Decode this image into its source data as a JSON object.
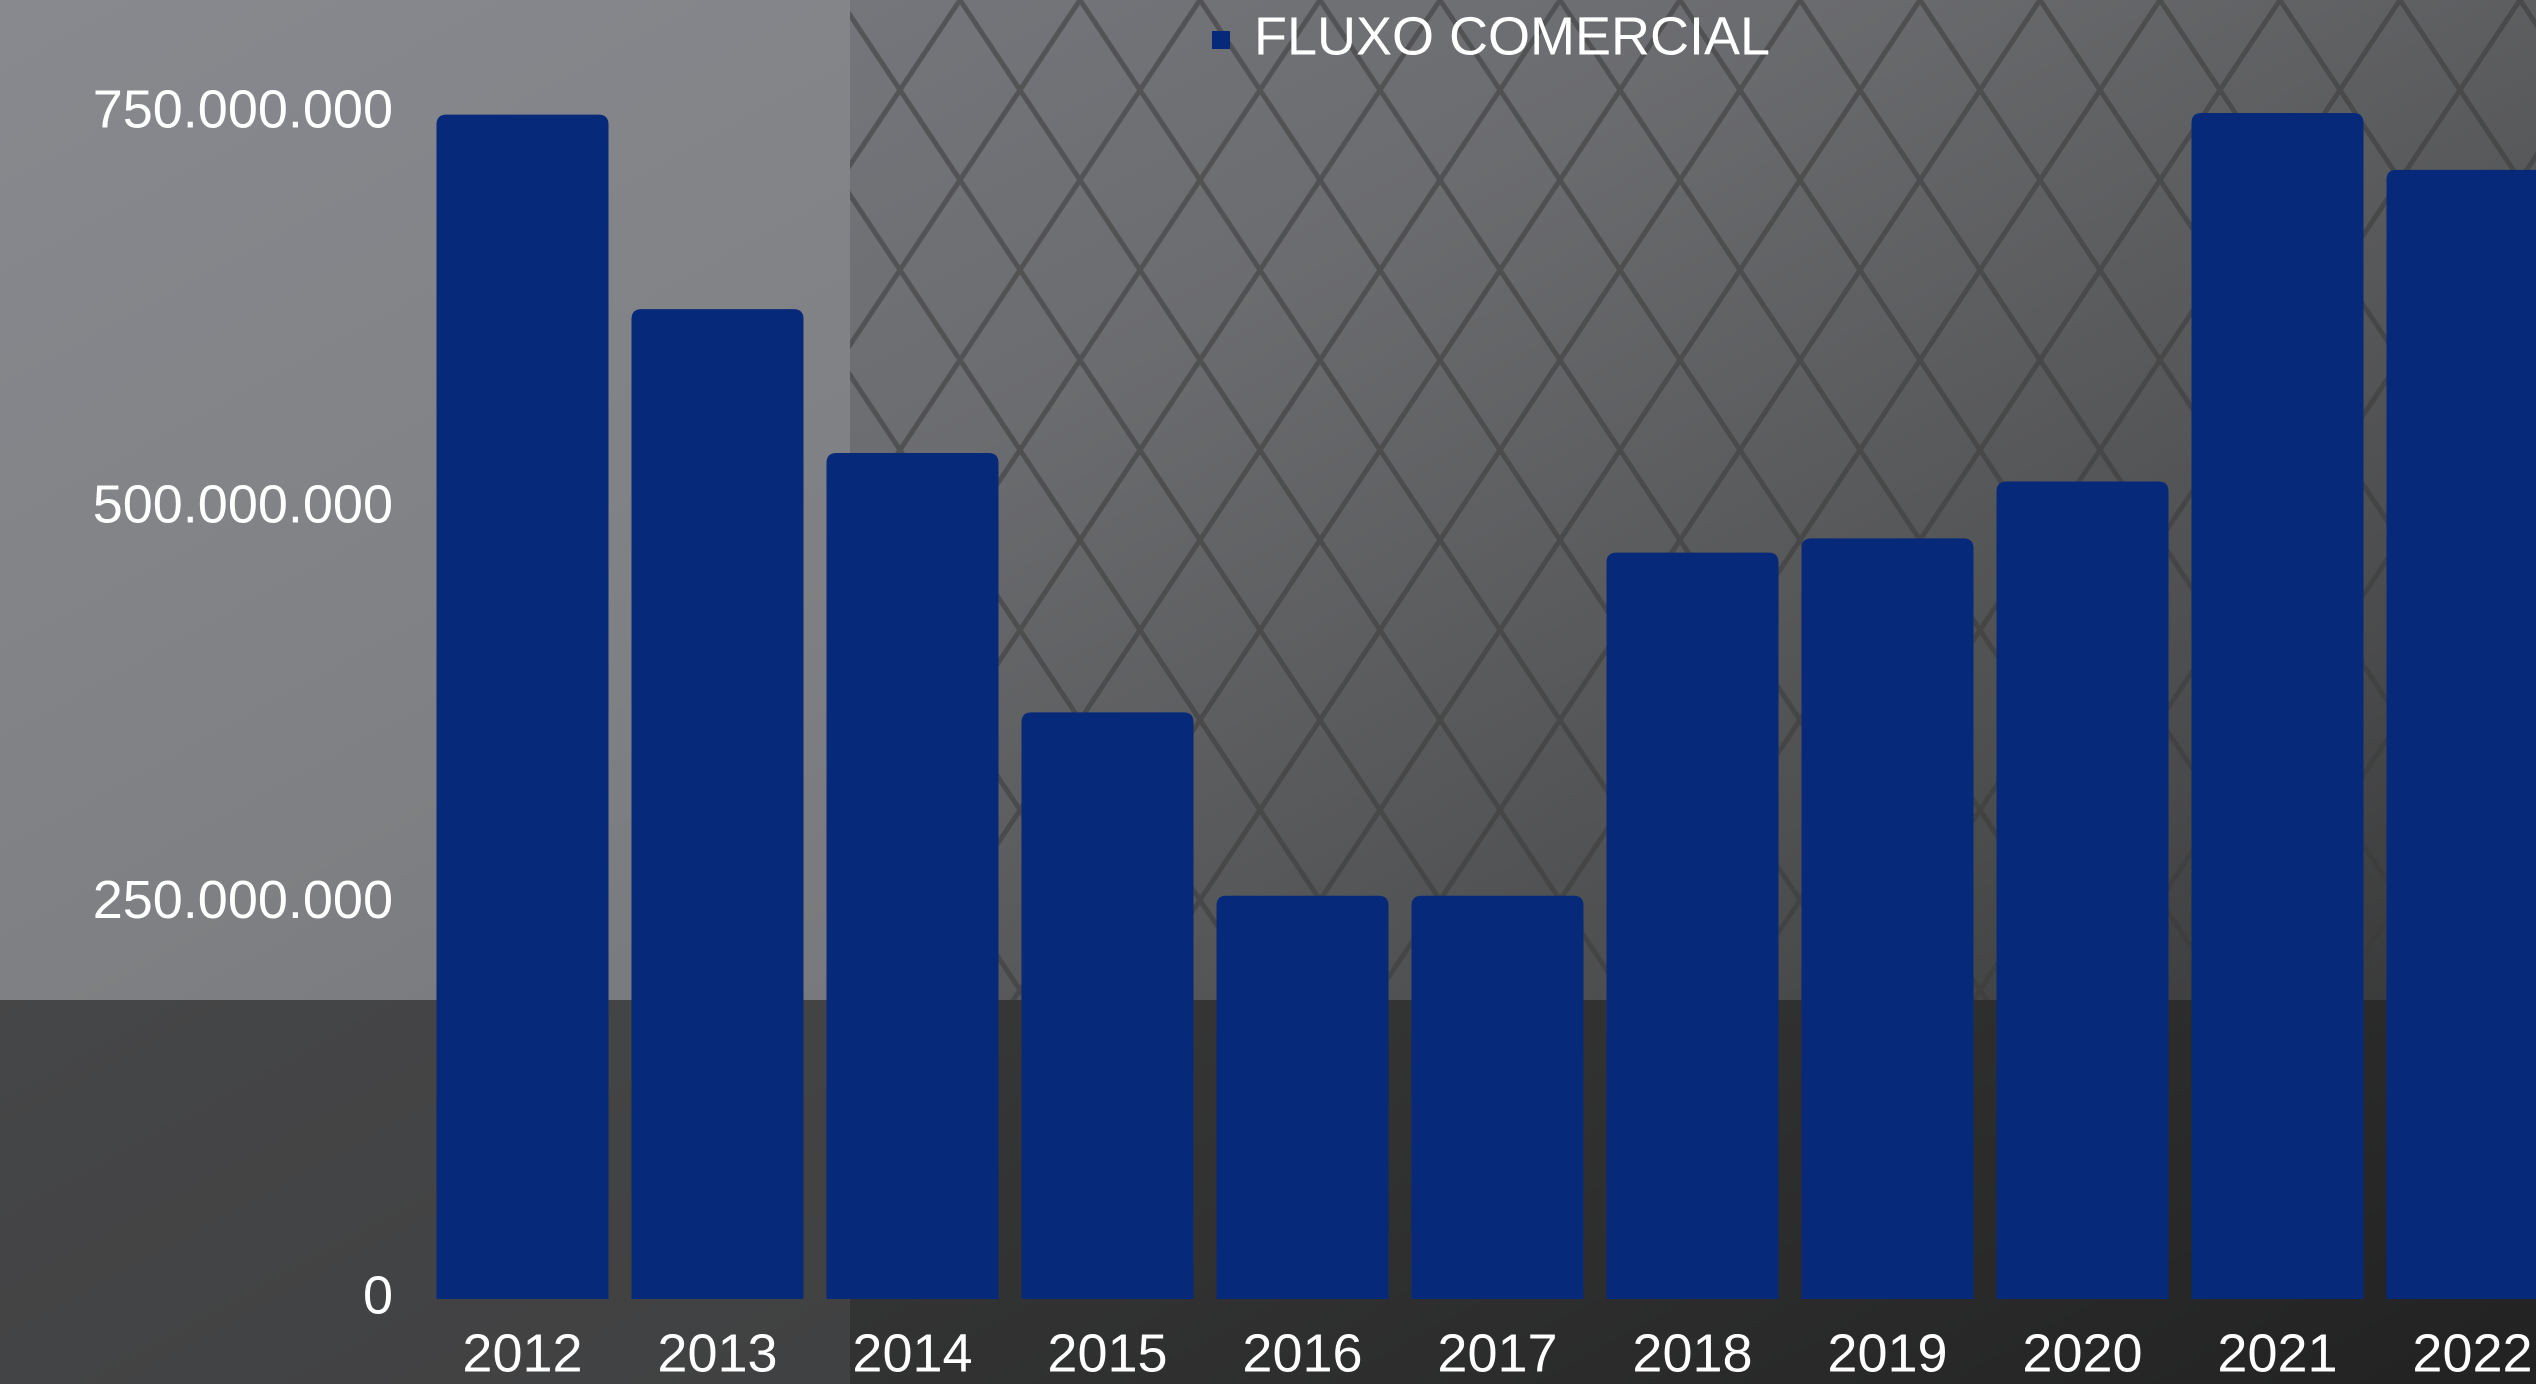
{
  "chart_data": {
    "type": "bar",
    "legend": "FLUXO COMERCIAL",
    "color": "#06297a",
    "categories": [
      "2012",
      "2013",
      "2014",
      "2015",
      "2016",
      "2017",
      "2018",
      "2019",
      "2020",
      "2021",
      "2022"
    ],
    "values": [
      749000000,
      626000000,
      535000000,
      371000000,
      255000000,
      255000000,
      472000000,
      481000000,
      517000000,
      750000000,
      714000000
    ],
    "ylim": [
      0,
      750000000
    ],
    "yticks": [
      0,
      {
        "value": 250000000,
        "label": "250.000.000"
      },
      {
        "value": 500000000,
        "label": "500.000.000"
      },
      {
        "value": 750000000,
        "label": "750.000.000"
      }
    ],
    "legend_position": "top"
  }
}
